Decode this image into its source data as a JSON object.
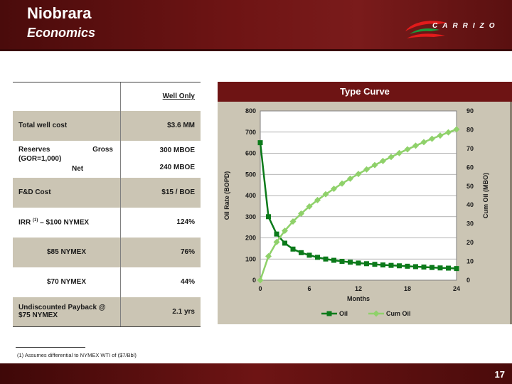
{
  "header": {
    "title": "Niobrara",
    "subtitle": "Economics",
    "logo_text": "CARRIZO"
  },
  "table": {
    "column_header": "Well Only",
    "rows": {
      "total_cost": {
        "label": "Total well cost",
        "value": "$3.6 MM"
      },
      "reserves": {
        "label": "Reserves",
        "gor": "(GOR=1,000)",
        "gross_label": "Gross",
        "gross_value": "300 MBOE",
        "net_label": "Net",
        "net_value": "240 MBOE"
      },
      "fd_cost": {
        "label": "F&D Cost",
        "value": "$15 / BOE"
      },
      "irr_100": {
        "label_prefix": "IRR ",
        "sup": "(1)",
        "label_suffix": " – $100 NYMEX",
        "value": "124%"
      },
      "irr_85": {
        "label": "$85 NYMEX",
        "value": "76%"
      },
      "irr_70": {
        "label": "$70 NYMEX",
        "value": "44%"
      },
      "payback": {
        "label_line1": "Undiscounted Payback @",
        "label_line2": "$75 NYMEX",
        "value": "2.1 yrs"
      }
    }
  },
  "footnote": "(1)    Assumes differential to NYMEX WTI of ($7/Bbl)",
  "page_number": "17",
  "colors": {
    "brand_dark_red": "#6e1414",
    "panel_beige": "#cbc5b4",
    "oil_series": "#0b7a1a",
    "cum_oil_series": "#8fd16a"
  },
  "chart_data": {
    "type": "line",
    "title": "Type Curve",
    "xlabel": "Months",
    "ylabel": "Oil Rate (BOPD)",
    "y2label": "Cum Oil (MBO)",
    "xlim": [
      0,
      24
    ],
    "ylim": [
      0,
      800
    ],
    "y2lim": [
      0,
      90
    ],
    "xticks": [
      "0",
      "6",
      "12",
      "18",
      "24"
    ],
    "yticks": [
      "0",
      "100",
      "200",
      "300",
      "400",
      "500",
      "600",
      "700",
      "800"
    ],
    "y2ticks": [
      "0",
      "10",
      "20",
      "30",
      "40",
      "50",
      "60",
      "70",
      "80",
      "90"
    ],
    "grid": true,
    "legend_position": "bottom",
    "x": [
      0,
      1,
      2,
      3,
      4,
      5,
      6,
      7,
      8,
      9,
      10,
      11,
      12,
      13,
      14,
      15,
      16,
      17,
      18,
      19,
      20,
      21,
      22,
      23,
      24
    ],
    "series": [
      {
        "name": "Oil",
        "axis": "left",
        "values": [
          650,
          300,
          218,
          175,
          147,
          130,
          118,
          108,
          100,
          94,
          89,
          85,
          81,
          78,
          75,
          72,
          70,
          68,
          66,
          64,
          62,
          60,
          58,
          57,
          55
        ]
      },
      {
        "name": "Cum Oil",
        "axis": "right",
        "values": [
          0,
          12.7,
          20.3,
          26.3,
          31.2,
          35.4,
          39.2,
          42.6,
          45.7,
          48.6,
          51.4,
          54.0,
          56.5,
          58.9,
          61.2,
          63.4,
          65.5,
          67.6,
          69.6,
          71.5,
          73.4,
          75.2,
          76.9,
          78.6,
          80.2
        ]
      }
    ]
  }
}
